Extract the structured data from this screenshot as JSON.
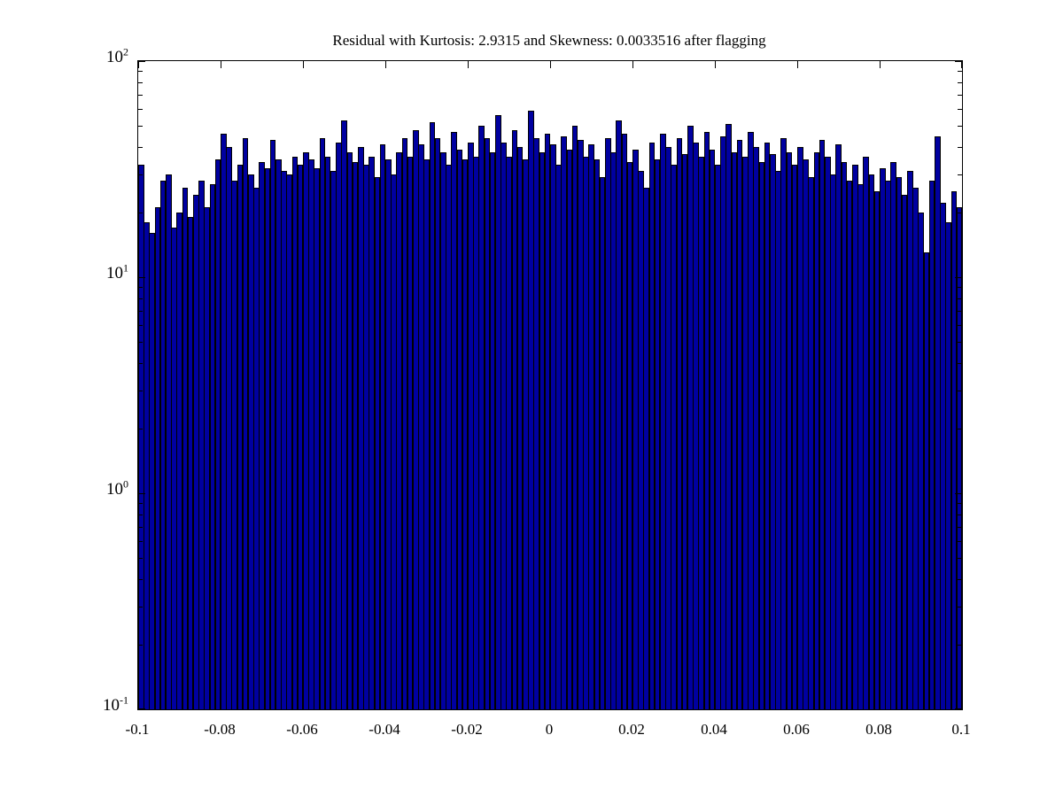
{
  "chart_data": {
    "type": "bar",
    "subtype": "histogram",
    "title": "Residual with Kurtosis: 2.9315 and Skewness: 0.0033516 after flagging",
    "xlabel": "",
    "ylabel": "",
    "yscale": "log",
    "xlim": [
      -0.1,
      0.1
    ],
    "ylim": [
      0.1,
      100
    ],
    "bins": 150,
    "bin_width": 0.0013333,
    "grid": false,
    "legend": null,
    "bar_face_color": "#0000A0",
    "bar_edge_color": "#000000",
    "axis_color": "#000000",
    "background_color": "#FFFFFF",
    "xtick_labels": [
      "-0.1",
      "-0.08",
      "-0.06",
      "-0.04",
      "-0.02",
      "0",
      "0.02",
      "0.04",
      "0.06",
      "0.08",
      "0.1"
    ],
    "xtick_values": [
      -0.1,
      -0.08,
      -0.06,
      -0.04,
      -0.02,
      0,
      0.02,
      0.04,
      0.06,
      0.08,
      0.1
    ],
    "ytick_base": "10",
    "ytick_exponents": [
      "2",
      "1",
      "0",
      "-1"
    ],
    "ytick_values": [
      100,
      10,
      1,
      0.1
    ],
    "values": [
      33,
      18,
      16,
      21,
      28,
      30,
      17,
      20,
      26,
      19,
      24,
      28,
      21,
      27,
      35,
      46,
      40,
      28,
      33,
      44,
      30,
      26,
      34,
      32,
      43,
      35,
      31,
      30,
      36,
      33,
      38,
      35,
      32,
      44,
      36,
      31,
      42,
      53,
      38,
      34,
      40,
      33,
      36,
      29,
      41,
      35,
      30,
      38,
      44,
      36,
      48,
      41,
      35,
      52,
      44,
      38,
      33,
      47,
      39,
      35,
      42,
      36,
      50,
      44,
      38,
      56,
      42,
      36,
      48,
      40,
      35,
      59,
      44,
      38,
      46,
      41,
      33,
      45,
      39,
      50,
      43,
      36,
      41,
      35,
      29,
      44,
      38,
      53,
      46,
      34,
      39,
      31,
      26,
      42,
      35,
      46,
      40,
      33,
      44,
      37,
      50,
      42,
      36,
      47,
      39,
      33,
      45,
      51,
      38,
      43,
      36,
      47,
      40,
      34,
      42,
      37,
      31,
      44,
      38,
      33,
      40,
      35,
      29,
      38,
      43,
      36,
      30,
      41,
      34,
      28,
      33,
      27,
      36,
      30,
      25,
      32,
      28,
      34,
      29,
      24,
      31,
      26,
      20,
      13,
      28,
      45,
      22,
      18,
      25,
      21
    ]
  }
}
